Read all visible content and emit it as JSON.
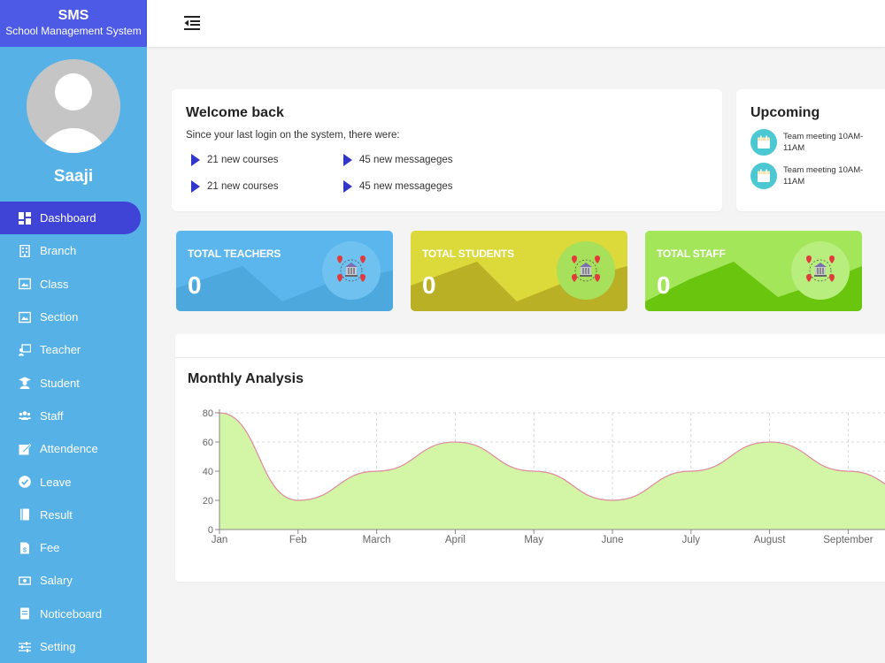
{
  "brand": {
    "title": "SMS",
    "subtitle": "School Management System"
  },
  "user": {
    "name": "Saaji"
  },
  "sidebar": {
    "items": [
      {
        "label": "Dashboard",
        "icon": "dashboard-icon",
        "active": true
      },
      {
        "label": "Branch",
        "icon": "building-icon"
      },
      {
        "label": "Class",
        "icon": "classroom-icon"
      },
      {
        "label": "Section",
        "icon": "section-icon"
      },
      {
        "label": "Teacher",
        "icon": "teacher-icon"
      },
      {
        "label": "Student",
        "icon": "graduate-icon"
      },
      {
        "label": "Staff",
        "icon": "users-icon"
      },
      {
        "label": "Attendence",
        "icon": "edit-icon"
      },
      {
        "label": "Leave",
        "icon": "check-circle-icon"
      },
      {
        "label": "Result",
        "icon": "book-icon"
      },
      {
        "label": "Fee",
        "icon": "file-invoice-icon"
      },
      {
        "label": "Salary",
        "icon": "money-icon"
      },
      {
        "label": "Noticeboard",
        "icon": "notice-icon"
      },
      {
        "label": "Setting",
        "icon": "sliders-icon"
      }
    ]
  },
  "welcome": {
    "title": "Welcome back",
    "subtitle": "Since your last login on the system, there were:",
    "stats": [
      "21 new courses",
      "45 new messageges",
      "21 new courses",
      "45 new messageges"
    ]
  },
  "upcoming": {
    "title": "Upcoming",
    "events": [
      "Team meeting 10AM-11AM",
      "Team meeting 10AM-11AM"
    ]
  },
  "tiles": [
    {
      "label": "TOTAL TEACHERS",
      "count": "0",
      "color": "#5ab6ec"
    },
    {
      "label": "TOTAL STUDENTS",
      "count": "0",
      "color": "#dcd93a"
    },
    {
      "label": "TOTAL STAFF",
      "count": "0",
      "color": "#a3e65a"
    }
  ],
  "chart_title": "Monthly Analysis",
  "chart_data": {
    "type": "area",
    "categories": [
      "Jan",
      "Feb",
      "March",
      "April",
      "May",
      "June",
      "July",
      "August",
      "September"
    ],
    "values": [
      80,
      20,
      40,
      60,
      40,
      20,
      40,
      60,
      40
    ],
    "ylim": [
      0,
      80
    ],
    "yticks": [
      0,
      20,
      40,
      60,
      80
    ],
    "grid": true,
    "fill_color": "#d3f5a6",
    "line_color": "#e08aa0"
  }
}
